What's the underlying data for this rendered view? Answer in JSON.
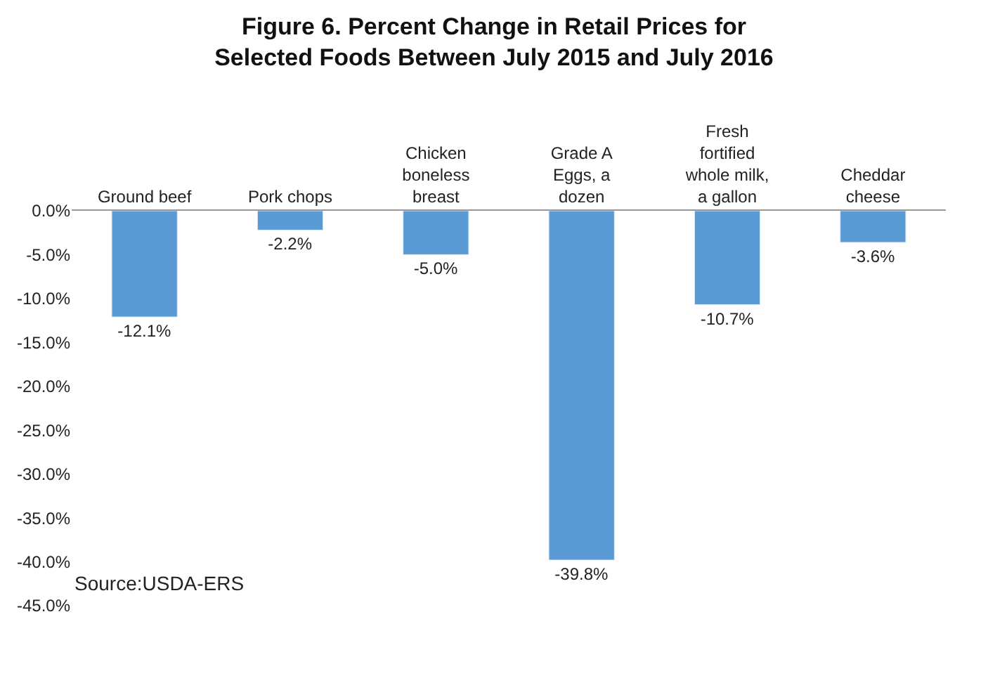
{
  "chart_data": {
    "type": "bar",
    "title": "Figure 6. Percent Change in Retail Prices for Selected Foods Between July 2015 and July 2016",
    "categories": [
      "Ground beef",
      "Pork chops",
      "Chicken boneless breast",
      "Grade A Eggs, a dozen",
      "Fresh fortified whole milk, a gallon",
      "Cheddar cheese"
    ],
    "values": [
      -12.1,
      -2.2,
      -5.0,
      -39.8,
      -10.7,
      -3.6
    ],
    "value_labels": [
      "-12.1%",
      "-2.2%",
      "-5.0%",
      "-39.8%",
      "-10.7%",
      "-3.6%"
    ],
    "color": "#5b9bd5",
    "ylim": [
      -45,
      0
    ],
    "yticks": [
      {
        "value": 0,
        "label": "0.0%"
      },
      {
        "value": -5,
        "label": "-5.0%"
      },
      {
        "value": -10,
        "label": "-10.0%"
      },
      {
        "value": -15,
        "label": "-15.0%"
      },
      {
        "value": -20,
        "label": "-20.0%"
      },
      {
        "value": -25,
        "label": "-25.0%"
      },
      {
        "value": -30,
        "label": "-30.0%"
      },
      {
        "value": -35,
        "label": "-35.0%"
      },
      {
        "value": -40,
        "label": "-40.0%"
      },
      {
        "value": -45,
        "label": "-45.0%"
      }
    ],
    "legend": false,
    "annotations": [
      "Source:USDA-ERS"
    ]
  }
}
